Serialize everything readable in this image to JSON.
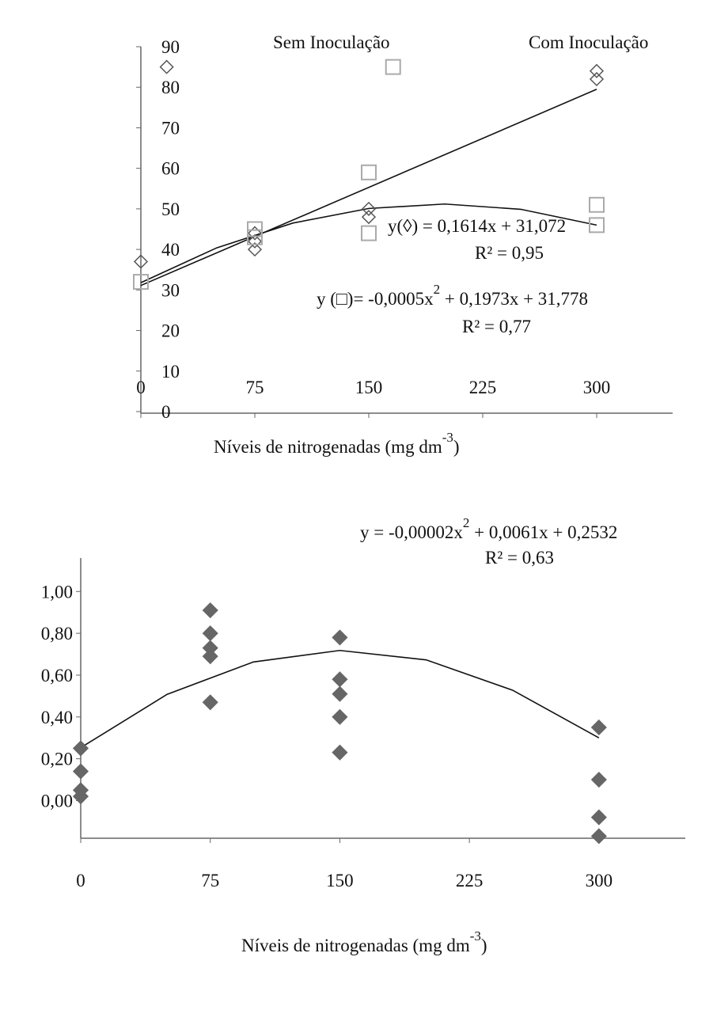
{
  "chart_data": [
    {
      "type": "scatter",
      "series": [
        {
          "name": "Sem Inoculação",
          "marker": "diamond",
          "color": "#555555",
          "x": [
            0,
            17,
            75,
            75,
            75,
            150,
            150,
            300,
            300
          ],
          "values": [
            37,
            85,
            44,
            42,
            40,
            50,
            48,
            84,
            82
          ]
        },
        {
          "name": "Com Inoculação",
          "marker": "square",
          "color": "#aaaaaa",
          "x": [
            0,
            75,
            75,
            150,
            150,
            166,
            300,
            300
          ],
          "values": [
            32,
            45,
            43,
            59,
            44,
            85,
            51,
            46
          ]
        }
      ],
      "trendlines": [
        {
          "x": [
            0,
            300
          ],
          "values": [
            31.1,
            79.5
          ]
        },
        {
          "x": [
            0,
            50,
            100,
            150,
            200,
            250,
            300
          ],
          "values": [
            31.8,
            40.4,
            46.5,
            50.1,
            51.2,
            49.9,
            46.0
          ]
        }
      ],
      "annotations": [
        {
          "parts": [
            "y(◊) = 0,1614x + 31,072"
          ]
        },
        {
          "parts": [
            "R² = 0,95"
          ]
        },
        {
          "parts": [
            "y (□)= -0,0005x",
            "2",
            " + 0,1973x + 31,778"
          ]
        },
        {
          "parts": [
            "R² = 0,77"
          ]
        }
      ],
      "x_label": {
        "parts": [
          "Níveis de nitrogenadas (mg dm",
          "-3",
          ")"
        ]
      },
      "xlim": [
        0,
        350
      ],
      "ylim": [
        0,
        90
      ],
      "xticks": [
        0,
        75,
        150,
        225,
        300
      ],
      "yticks": [
        0,
        10,
        20,
        30,
        40,
        50,
        60,
        70,
        80,
        90
      ]
    },
    {
      "type": "scatter",
      "series": [
        {
          "marker": "filled-diamond",
          "color": "#666666",
          "x": [
            0,
            0,
            0,
            0,
            75,
            75,
            75,
            75,
            75,
            150,
            150,
            150,
            150,
            150,
            300,
            300,
            300,
            300
          ],
          "values": [
            0.25,
            0.14,
            0.05,
            0.02,
            0.91,
            0.8,
            0.73,
            0.69,
            0.47,
            0.78,
            0.58,
            0.51,
            0.4,
            0.23,
            0.35,
            0.1,
            -0.08,
            -0.17
          ]
        }
      ],
      "trendlines": [
        {
          "x": [
            0,
            50,
            100,
            150,
            200,
            250,
            300
          ],
          "values": [
            0.253,
            0.508,
            0.663,
            0.718,
            0.673,
            0.528,
            0.3
          ]
        }
      ],
      "annotations": [
        {
          "parts": [
            "y = -0,00002x",
            "2",
            " + 0,0061x + 0,2532"
          ]
        },
        {
          "parts": [
            "R² = 0,63"
          ]
        }
      ],
      "x_label": {
        "parts": [
          "Níveis de nitrogenadas (mg dm",
          "-3",
          ")"
        ]
      },
      "xlim": [
        0,
        350
      ],
      "ylim": [
        -0.18,
        1.16
      ],
      "xticks": [
        0,
        75,
        150,
        225,
        300
      ],
      "yticks": [
        {
          "value": 0,
          "label": "0,00"
        },
        {
          "value": 0.2,
          "label": "0,20"
        },
        {
          "value": 0.4,
          "label": "0,40"
        },
        {
          "value": 0.6,
          "label": "0,60"
        },
        {
          "value": 0.8,
          "label": "0,80"
        },
        {
          "value": 1.0,
          "label": "1,00"
        }
      ]
    }
  ]
}
